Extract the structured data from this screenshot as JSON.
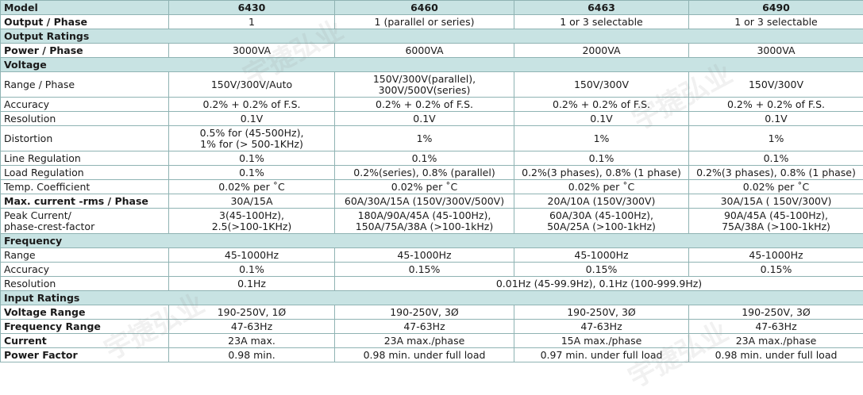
{
  "header": {
    "label": "Model",
    "models": [
      "6430",
      "6460",
      "6463",
      "6490"
    ]
  },
  "output_phase": {
    "label": "Output / Phase",
    "values": [
      "1",
      "1 (parallel or series)",
      "1 or 3 selectable",
      "1 or 3 selectable"
    ]
  },
  "output_ratings": {
    "section": "Output Ratings",
    "power_phase": {
      "label": "Power / Phase",
      "values": [
        "3000VA",
        "6000VA",
        "2000VA",
        "3000VA"
      ]
    }
  },
  "voltage": {
    "section": "Voltage",
    "range_phase": {
      "label": "Range / Phase",
      "values": [
        [
          "150V/300V/Auto"
        ],
        [
          "150V/300V(parallel),",
          "300V/500V(series)"
        ],
        [
          "150V/300V"
        ],
        [
          "150V/300V"
        ]
      ]
    },
    "accuracy": {
      "label": "Accuracy",
      "values": [
        "0.2% + 0.2% of F.S.",
        "0.2% + 0.2% of F.S.",
        "0.2% + 0.2% of F.S.",
        "0.2% + 0.2% of F.S."
      ]
    },
    "resolution": {
      "label": "Resolution",
      "values": [
        "0.1V",
        "0.1V",
        "0.1V",
        "0.1V"
      ]
    },
    "distortion": {
      "label": "Distortion",
      "values": [
        [
          "0.5% for (45-500Hz),",
          "1% for (> 500-1KHz)"
        ],
        [
          "1%"
        ],
        [
          "1%"
        ],
        [
          "1%"
        ]
      ]
    },
    "line_regulation": {
      "label": "Line Regulation",
      "values": [
        "0.1%",
        "0.1%",
        "0.1%",
        "0.1%"
      ]
    },
    "load_regulation": {
      "label": "Load Regulation",
      "values": [
        "0.1%",
        "0.2%(series), 0.8% (parallel)",
        "0.2%(3 phases), 0.8% (1 phase)",
        "0.2%(3 phases), 0.8% (1 phase)"
      ]
    },
    "temp_coefficient": {
      "label": "Temp. Coefficient",
      "values": [
        "0.02% per ˚C",
        "0.02% per ˚C",
        "0.02% per ˚C",
        "0.02% per ˚C"
      ]
    },
    "max_current": {
      "label": "Max. current -rms / Phase",
      "values": [
        "30A/15A",
        "60A/30A/15A (150V/300V/500V)",
        "20A/10A (150V/300V)",
        "30A/15A ( 150V/300V)"
      ]
    },
    "peak_current": {
      "label": [
        "Peak Current/",
        "phase-crest-factor"
      ],
      "values": [
        [
          "3(45-100Hz),",
          "2.5(>100-1KHz)"
        ],
        [
          "180A/90A/45A (45-100Hz),",
          "150A/75A/38A (>100-1kHz)"
        ],
        [
          "60A/30A (45-100Hz),",
          "50A/25A (>100-1kHz)"
        ],
        [
          "90A/45A (45-100Hz),",
          "75A/38A (>100-1kHz)"
        ]
      ]
    }
  },
  "frequency": {
    "section": "Frequency",
    "range": {
      "label": "Range",
      "values": [
        "45-1000Hz",
        "45-1000Hz",
        "45-1000Hz",
        "45-1000Hz"
      ]
    },
    "accuracy": {
      "label": "Accuracy",
      "values": [
        "0.1%",
        "0.15%",
        "0.15%",
        "0.15%"
      ]
    },
    "resolution": {
      "label": "Resolution",
      "values": [
        "0.1Hz",
        "0.01Hz (45-99.9Hz), 0.1Hz (100-999.9Hz)"
      ]
    }
  },
  "input_ratings": {
    "section": "Input Ratings",
    "voltage_range": {
      "label": "Voltage Range",
      "values": [
        "190-250V, 1Ø",
        "190-250V, 3Ø",
        "190-250V, 3Ø",
        "190-250V, 3Ø"
      ]
    },
    "frequency_range": {
      "label": "Frequency Range",
      "values": [
        "47-63Hz",
        "47-63Hz",
        "47-63Hz",
        "47-63Hz"
      ]
    },
    "current": {
      "label": "Current",
      "values": [
        "23A max.",
        "23A max./phase",
        "15A max./phase",
        "23A max./phase"
      ]
    },
    "power_factor": {
      "label": "Power Factor",
      "values": [
        "0.98 min.",
        "0.98 min. under full load",
        "0.97 min. under full load",
        "0.98 min. under full load"
      ]
    }
  },
  "watermark": "宇捷弘业"
}
